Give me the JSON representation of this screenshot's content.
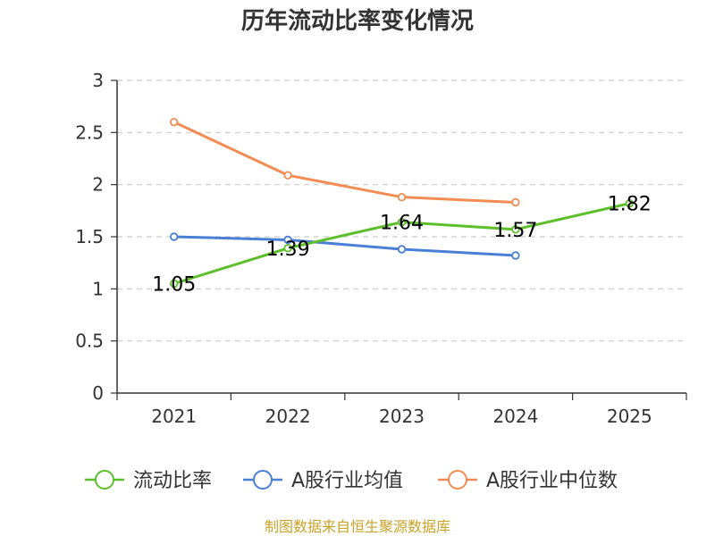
{
  "chart_data": {
    "type": "line",
    "title": "历年流动比率变化情况",
    "categories": [
      "2021",
      "2022",
      "2023",
      "2024",
      "2025"
    ],
    "ylim": [
      0,
      3
    ],
    "yticks": [
      "0",
      "0.5",
      "1",
      "1.5",
      "2",
      "2.5",
      "3"
    ],
    "grid": true,
    "legend_position": "bottom",
    "series": [
      {
        "name": "流动比率",
        "color": "#5cbf2a",
        "values": [
          1.05,
          1.39,
          1.64,
          1.57,
          1.82
        ],
        "labels": [
          "1.05",
          "1.39",
          "1.64",
          "1.57",
          "1.82"
        ]
      },
      {
        "name": "A股行业均值",
        "color": "#4a7fd6",
        "values": [
          1.5,
          1.47,
          1.38,
          1.32,
          null
        ]
      },
      {
        "name": "A股行业中位数",
        "color": "#f28c52",
        "values": [
          2.6,
          2.09,
          1.88,
          1.83,
          null
        ]
      }
    ],
    "source": "制图数据来自恒生聚源数据库"
  }
}
